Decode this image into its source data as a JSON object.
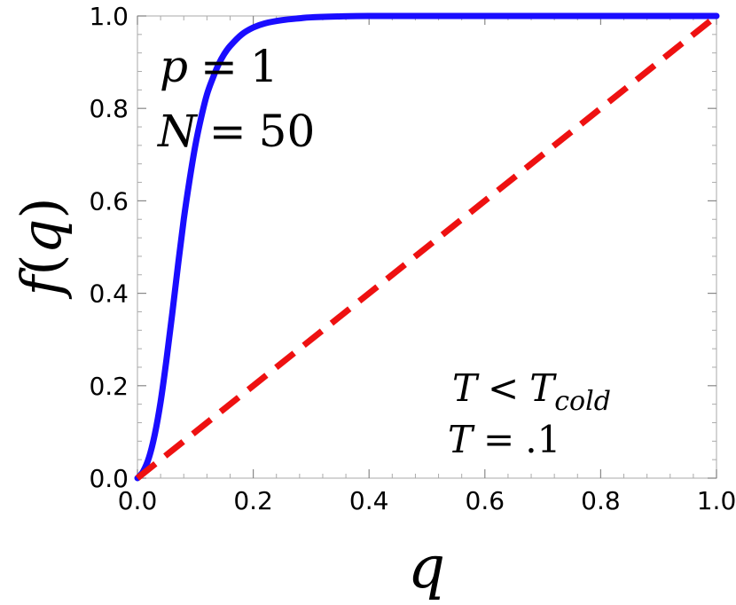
{
  "chart_data": {
    "type": "line",
    "xlabel": "q",
    "ylabel_func": "f",
    "ylabel_paren_open": "(",
    "ylabel_var": "q",
    "ylabel_paren_close": ")",
    "xlim": [
      0.0,
      1.0
    ],
    "ylim": [
      0.0,
      1.0
    ],
    "grid": false,
    "x_ticks": [
      "0.0",
      "0.2",
      "0.4",
      "0.6",
      "0.8",
      "1.0"
    ],
    "y_ticks": [
      "0.0",
      "0.2",
      "0.4",
      "0.6",
      "0.8",
      "1.0"
    ],
    "series": [
      {
        "style": "solid",
        "color": "#1a0dff",
        "x": [
          0.0,
          0.01,
          0.02,
          0.03,
          0.04,
          0.05,
          0.06,
          0.07,
          0.08,
          0.09,
          0.1,
          0.11,
          0.12,
          0.13,
          0.14,
          0.15,
          0.16,
          0.18,
          0.2,
          0.22,
          0.25,
          0.28,
          0.3,
          0.35,
          0.4,
          0.5,
          0.6,
          0.7,
          0.8,
          0.9,
          1.0
        ],
        "y": [
          0.0,
          0.015,
          0.045,
          0.095,
          0.165,
          0.255,
          0.355,
          0.46,
          0.56,
          0.645,
          0.72,
          0.78,
          0.83,
          0.865,
          0.895,
          0.918,
          0.935,
          0.96,
          0.975,
          0.984,
          0.991,
          0.995,
          0.997,
          0.999,
          1.0,
          1.0,
          1.0,
          1.0,
          1.0,
          1.0,
          1.0
        ]
      },
      {
        "style": "dashed",
        "color": "#ee1111",
        "x": [
          0.0,
          1.0
        ],
        "y": [
          0.0,
          1.0
        ]
      }
    ],
    "annotations": {
      "p_var": "p",
      "p_eq": "=",
      "p_val": "1",
      "n_var": "N",
      "n_eq": "=",
      "n_val": "50",
      "t_var": "T",
      "t_lt": "<",
      "t_cold_var": "T",
      "t_cold_sub": "cold",
      "t2_var": "T",
      "t2_eq": "=",
      "t2_val": ".1"
    }
  }
}
